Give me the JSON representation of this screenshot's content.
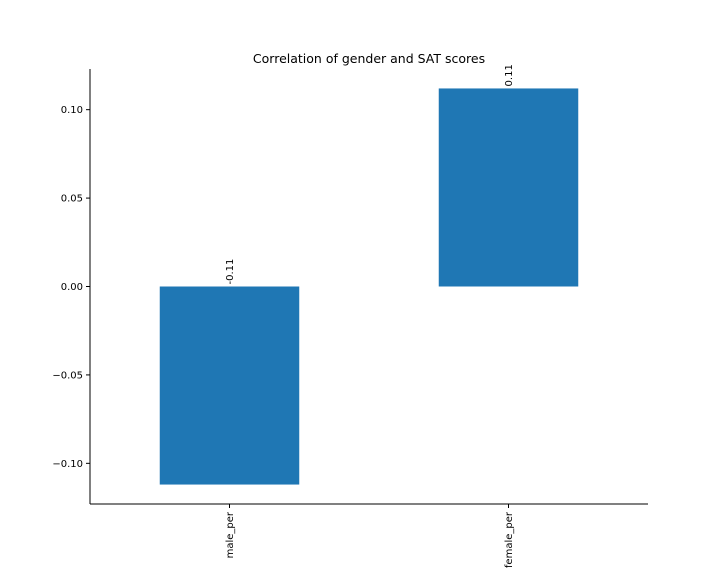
{
  "chart_data": {
    "type": "bar",
    "title": "Correlation of gender and SAT scores",
    "xlabel": "",
    "ylabel": "",
    "categories": [
      "male_per",
      "female_per"
    ],
    "values": [
      -0.112,
      0.112
    ],
    "data_labels": [
      "-0.11",
      "0.11"
    ],
    "ylim": [
      -0.123,
      0.123
    ],
    "yticks": [
      -0.1,
      -0.05,
      0.0,
      0.05,
      0.1
    ],
    "ytick_labels": [
      "−0.10",
      "−0.05",
      "0.00",
      "0.05",
      "0.10"
    ],
    "bar_color": "#1f77b4",
    "grid": false,
    "legend": "none"
  }
}
